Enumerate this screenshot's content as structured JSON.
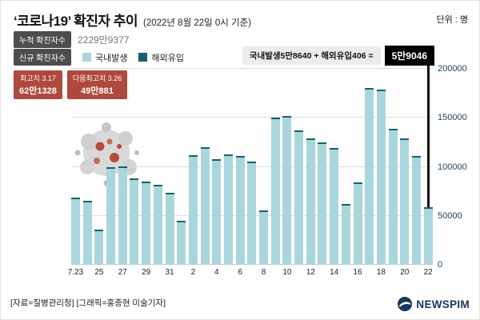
{
  "page": {
    "unit": "단위 : 명"
  },
  "header": {
    "title": "‘코로나19’ 확진자 추이",
    "subtitle": "(2022년 8월 22일 0시 기준)",
    "cumulative": {
      "label": "누적 확진자수",
      "value": "2229만9377"
    },
    "new_label": "신규 확진자수",
    "callout": {
      "expression": "국내발생5만8640 + 해외유입406 =",
      "result": "5만9046"
    }
  },
  "peaks": [
    {
      "label": "최고치 3.17",
      "value": "62만1328"
    },
    {
      "label": "다음최고치 3.26",
      "value": "49만881"
    }
  ],
  "chart_data": {
    "type": "bar",
    "title": "‘코로나19’ 확진자 추이 (2022년 8월 22일 0시 기준)",
    "ylabel": "명",
    "ylim": [
      0,
      200000
    ],
    "yticks": [
      0,
      50000,
      100000,
      150000,
      200000
    ],
    "grid": true,
    "legend": [
      {
        "label": "국내발생",
        "color": "#a9d6dd"
      },
      {
        "label": "해외유입",
        "color": "#17616c"
      }
    ],
    "x": [
      "7.23",
      "7.24",
      "7.25",
      "7.26",
      "7.27",
      "7.28",
      "7.29",
      "7.30",
      "7.31",
      "8.1",
      "8.2",
      "8.3",
      "8.4",
      "8.5",
      "8.6",
      "8.7",
      "8.8",
      "8.9",
      "8.10",
      "8.11",
      "8.12",
      "8.13",
      "8.14",
      "8.15",
      "8.16",
      "8.17",
      "8.18",
      "8.19",
      "8.20",
      "8.21",
      "8.22"
    ],
    "tick_labels": [
      "7.23",
      "25",
      "27",
      "29",
      "31",
      "2",
      "4",
      "6",
      "8",
      "10",
      "12",
      "14",
      "16",
      "18",
      "20",
      "22"
    ],
    "values": [
      68500,
      65400,
      35900,
      99300,
      100300,
      88400,
      85300,
      82000,
      73600,
      44700,
      111800,
      119900,
      107900,
      112900,
      110700,
      105500,
      55300,
      149900,
      151800,
      137200,
      128700,
      124600,
      119600,
      62100,
      84100,
      180800,
      178600,
      138800,
      129400,
      110900,
      59046
    ],
    "last_bar_annotation": {
      "domestic": "5만8640",
      "overseas": "406",
      "total": "5만9046"
    }
  },
  "footer": {
    "source": "[자료=질병관리청] [그래픽=홍종현 미술기자]",
    "brand": "NEWSPIM"
  }
}
